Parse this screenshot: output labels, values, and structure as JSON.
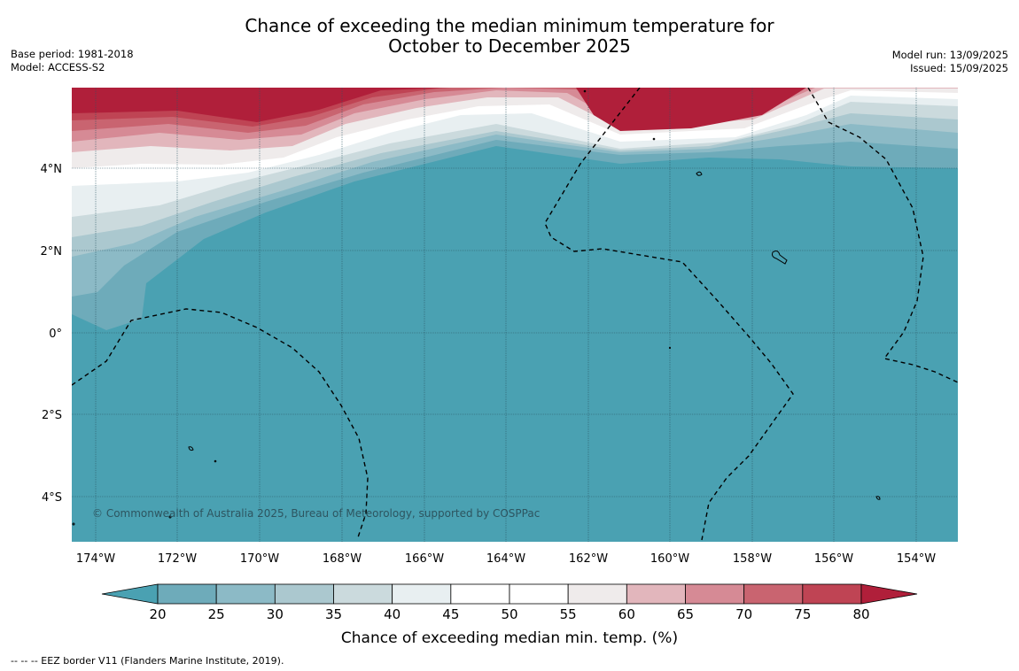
{
  "header": {
    "title_line1": "Chance of exceeding the median minimum temperature for",
    "title_line2": "October to December 2025",
    "base_period": "Base period: 1981-2018",
    "model": "Model: ACCESS-S2",
    "model_run": "Model run: 13/09/2025",
    "issued": "Issued: 15/09/2025"
  },
  "map": {
    "lat_labels": [
      "4°N",
      "2°N",
      "0°",
      "2°S",
      "4°S"
    ],
    "lon_labels": [
      "174°W",
      "172°W",
      "170°W",
      "168°W",
      "166°W",
      "164°W",
      "162°W",
      "160°W",
      "158°W",
      "156°W",
      "154°W"
    ],
    "copyright": "© Commonwealth of Australia 2025, Bureau of Meteorology, supported by COSPPac",
    "background_color": "#4aa1b2"
  },
  "colorbar": {
    "ticks": [
      "20",
      "25",
      "30",
      "35",
      "40",
      "45",
      "50",
      "55",
      "60",
      "65",
      "70",
      "75",
      "80"
    ],
    "colors": [
      "#4aa1b2",
      "#6eabba",
      "#8cbac6",
      "#abc8cf",
      "#cbdadd",
      "#e8eff1",
      "#ffffff",
      "#ffffff",
      "#efebeb",
      "#e2b6bc",
      "#d68a95",
      "#c96470",
      "#bf4454",
      "#b01f3a"
    ],
    "label": "Chance of exceeding median min. temp. (%)"
  },
  "footer": {
    "eez_note": "--  --  -- EEZ border V11 (Flanders Marine Institute, 2019)."
  }
}
